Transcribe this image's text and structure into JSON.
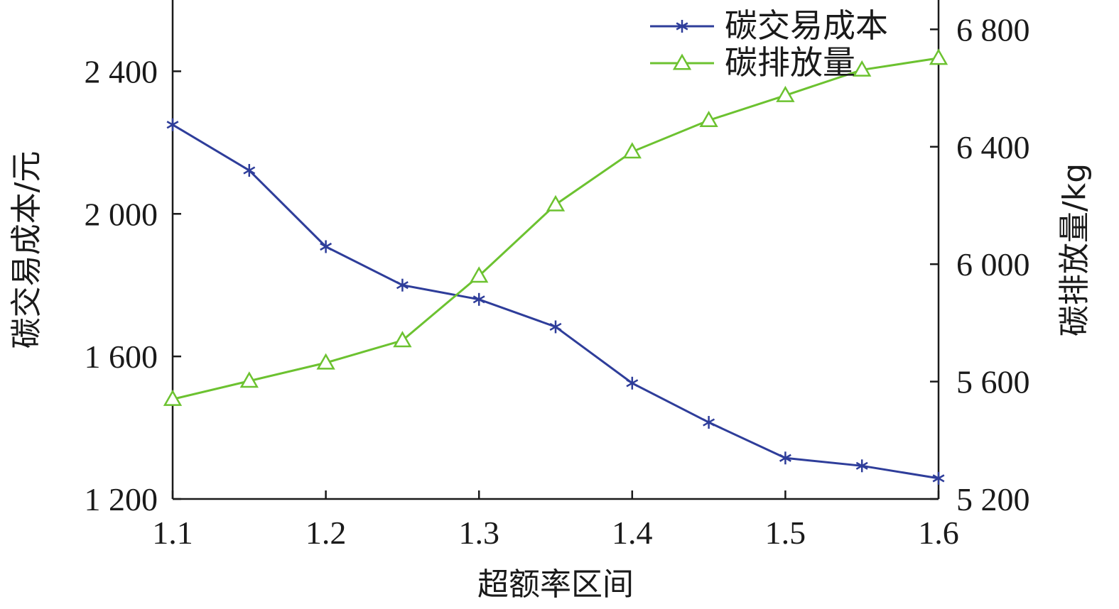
{
  "chart_data": {
    "type": "line",
    "title": "",
    "xlabel": "超额率区间",
    "ylabel_left": "碳交易成本/元",
    "ylabel_right": "碳排放量/kg",
    "xlim": [
      1.1,
      1.6
    ],
    "ylim_left": [
      1200,
      2600
    ],
    "ylim_right": [
      5200,
      6900
    ],
    "x_ticks": [
      1.1,
      1.2,
      1.3,
      1.4,
      1.5,
      1.6
    ],
    "x_tick_labels": [
      "1.1",
      "1.2",
      "1.3",
      "1.4",
      "1.5",
      "1.6"
    ],
    "y_left_ticks": [
      1200,
      1600,
      2000,
      2400
    ],
    "y_left_tick_labels": [
      "1 200",
      "1 600",
      "2 000",
      "2 400"
    ],
    "y_right_ticks": [
      5200,
      5600,
      6000,
      6400,
      6800
    ],
    "y_right_tick_labels": [
      "5 200",
      "5 600",
      "6 000",
      "6 400",
      "6 800"
    ],
    "grid": false,
    "legend_position": "top-right",
    "x": [
      1.1,
      1.15,
      1.2,
      1.25,
      1.3,
      1.35,
      1.4,
      1.45,
      1.5,
      1.55,
      1.6
    ],
    "series": [
      {
        "name": "碳交易成本",
        "axis": "left",
        "marker": "asterisk",
        "color": "#2E3D9A",
        "values": [
          2250,
          2122,
          1908,
          1800,
          1760,
          1683,
          1525,
          1415,
          1315,
          1293,
          1258
        ]
      },
      {
        "name": "碳排放量",
        "axis": "right",
        "marker": "triangle",
        "color": "#6CC230",
        "values": [
          5540,
          5602,
          5664,
          5740,
          5960,
          6203,
          6383,
          6490,
          6575,
          6662,
          6702
        ]
      }
    ]
  }
}
